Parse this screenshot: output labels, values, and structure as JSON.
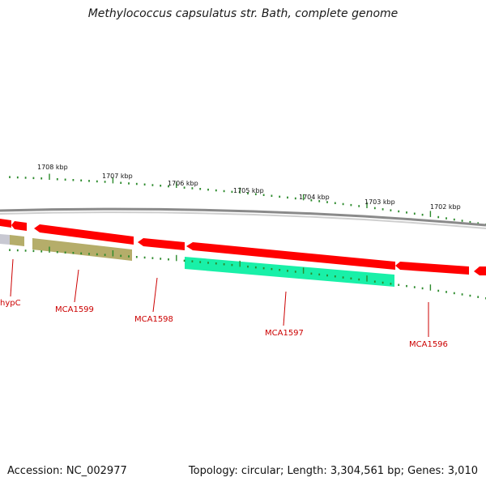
{
  "title": "Methylococcus capsulatus str. Bath, complete genome",
  "accession_label": "Accession: NC_002977",
  "topology_label": "Topology: circular; Length: 3,304,561 bp; Genes: 3,010",
  "colors": {
    "backbone": "#8a8a8a",
    "gene_red": "#ff0000",
    "gene_olive": "#b5ad6a",
    "gene_green": "#19f0a8",
    "gene_grey": "#c8c8d2",
    "tick_green": "#2b8a2b",
    "label_red": "#cc0000"
  },
  "scale_labels": [
    "1708 kbp",
    "1707 kbp",
    "1706 kbp",
    "1705 kbp",
    "1704 kbp",
    "1703 kbp",
    "1702 kbp"
  ],
  "gene_labels": [
    "hypC",
    "MCA1599",
    "MCA1598",
    "MCA1597",
    "MCA1596"
  ]
}
